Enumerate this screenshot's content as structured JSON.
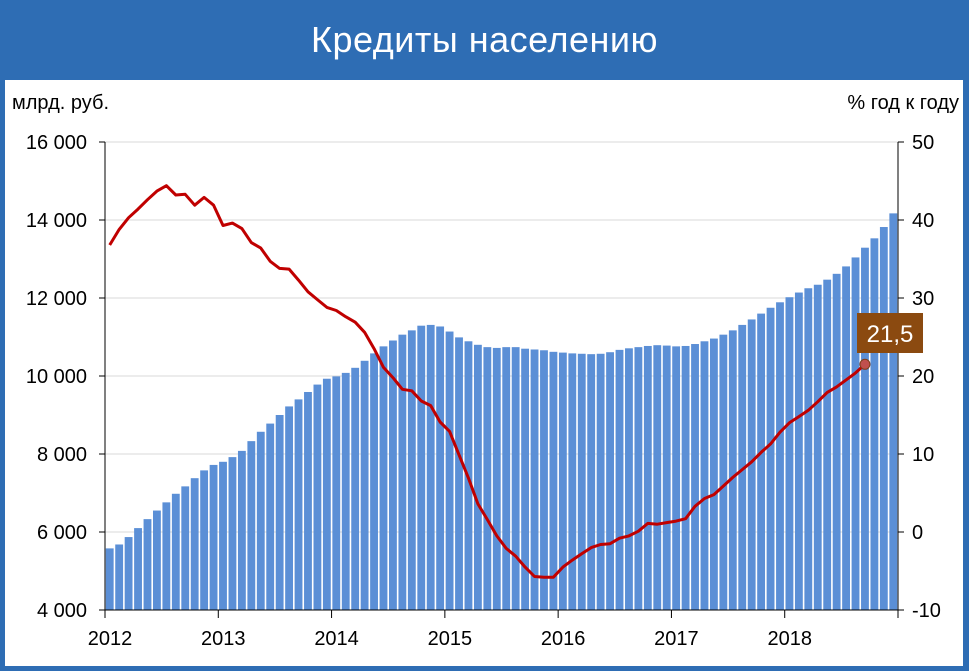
{
  "header": {
    "title": "Кредиты населению"
  },
  "chart_data": {
    "type": "bar",
    "title": "Кредиты населению",
    "ylabel_left": "млрд. руб.",
    "ylabel_right": "% год к году",
    "ylim_left": [
      4000,
      16000
    ],
    "ylim_right": [
      -10,
      50
    ],
    "yticks_left": [
      "4 000",
      "6 000",
      "8 000",
      "10 000",
      "12 000",
      "14 000",
      "16 000"
    ],
    "yticks_right": [
      "-10",
      "0",
      "10",
      "20",
      "30",
      "40",
      "50"
    ],
    "xticks": [
      "2012",
      "2013",
      "2014",
      "2015",
      "2016",
      "2017",
      "2018"
    ],
    "x_start": "2012-01",
    "series": [
      {
        "type": "bar",
        "axis": "left",
        "color": "#5b8fd6",
        "values": [
          5580,
          5680,
          5870,
          6100,
          6330,
          6550,
          6760,
          6980,
          7170,
          7380,
          7580,
          7720,
          7800,
          7920,
          8080,
          8330,
          8570,
          8780,
          9000,
          9220,
          9400,
          9590,
          9780,
          9930,
          9990,
          10080,
          10210,
          10390,
          10580,
          10760,
          10910,
          11060,
          11170,
          11290,
          11310,
          11270,
          11140,
          10990,
          10890,
          10800,
          10740,
          10720,
          10740,
          10740,
          10700,
          10680,
          10660,
          10620,
          10600,
          10580,
          10570,
          10560,
          10570,
          10610,
          10670,
          10710,
          10740,
          10770,
          10790,
          10780,
          10760,
          10770,
          10820,
          10890,
          10960,
          11060,
          11170,
          11310,
          11450,
          11600,
          11750,
          11890,
          12020,
          12140,
          12250,
          12340,
          12470,
          12620,
          12810,
          13040,
          13290,
          13530,
          13820,
          14170
        ]
      },
      {
        "type": "line",
        "axis": "right",
        "color": "#c00000",
        "values": [
          36.8,
          38.8,
          40.3,
          41.4,
          42.6,
          43.7,
          44.4,
          43.2,
          43.3,
          41.9,
          42.9,
          41.9,
          39.3,
          39.6,
          38.9,
          37.1,
          36.4,
          34.7,
          33.8,
          33.7,
          32.3,
          30.8,
          29.8,
          28.8,
          28.4,
          27.6,
          26.9,
          25.6,
          23.5,
          21.1,
          19.8,
          18.3,
          18.1,
          16.8,
          16.2,
          14.1,
          12.9,
          9.9,
          6.9,
          3.6,
          1.6,
          -0.5,
          -2.1,
          -3.1,
          -4.5,
          -5.7,
          -5.8,
          -5.8,
          -4.5,
          -3.6,
          -2.8,
          -2.0,
          -1.6,
          -1.5,
          -0.8,
          -0.5,
          0.1,
          1.1,
          1.0,
          1.2,
          1.4,
          1.7,
          3.3,
          4.3,
          4.8,
          5.9,
          7.0,
          8.0,
          9.0,
          10.2,
          11.3,
          12.8,
          14.0,
          14.8,
          15.6,
          16.7,
          17.9,
          18.6,
          19.5,
          20.4,
          21.5
        ]
      }
    ],
    "annotation": {
      "label": "21,5",
      "value": 21.5,
      "color": "#8b4a10"
    }
  }
}
